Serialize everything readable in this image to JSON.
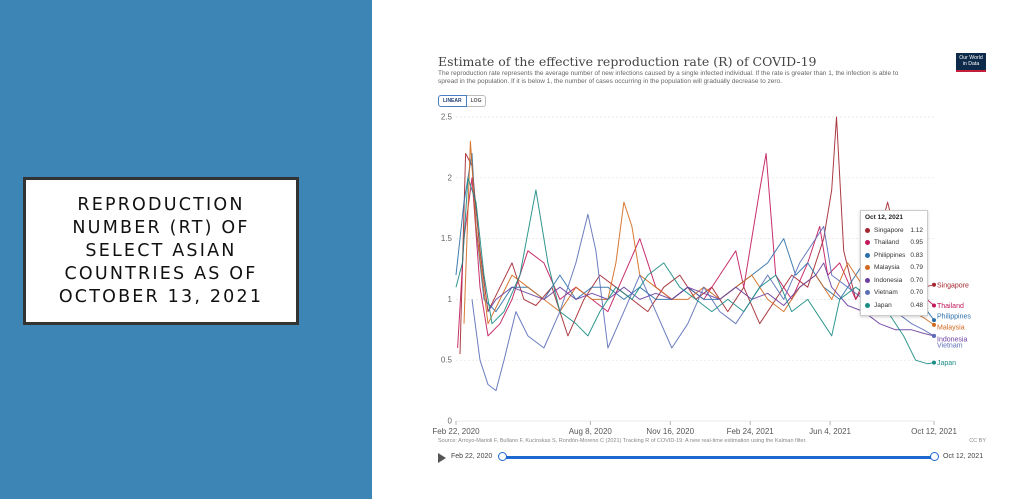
{
  "slide": {
    "title": "REPRODUCTION NUMBER (RT) OF SELECT ASIAN COUNTRIES AS OF OCTOBER 13, 2021",
    "background_color": "#3c85b5"
  },
  "chart_header": {
    "title": "Estimate of the effective reproduction rate (R) of COVID-19",
    "subtitle": "The reproduction rate represents the average number of new infections caused by a single infected individual. If the rate is greater than 1, the infection is able to spread in the population. If it is below 1, the number of cases occurring in the population will gradually decrease to zero.",
    "logo_line1": "Our World",
    "logo_line2": "in Data",
    "scale_linear": "LINEAR",
    "scale_log": "LOG"
  },
  "footer": {
    "source": "Source: Arroyo-Marioli F, Bullano F, Kucinskas S, Rondón-Moreno C (2021) Tracking R of COVID-19: A new real-time estimation using the Kalman filter.",
    "license": "CC BY",
    "timeline_start": "Feb 22, 2020",
    "timeline_end": "Oct 12, 2021"
  },
  "tooltip": {
    "date": "Oct 12, 2021"
  },
  "chart_data": {
    "type": "line",
    "x_ticks": [
      "Feb 22, 2020",
      "Aug 8, 2020",
      "Nov 16, 2020",
      "Feb 24, 2021",
      "Jun 4, 2021",
      "Oct 12, 2021"
    ],
    "x_tick_days": [
      0,
      168,
      268,
      368,
      468,
      598
    ],
    "y_ticks": [
      0,
      0.5,
      1,
      1.5,
      2,
      2.5
    ],
    "ylim": [
      0,
      2.5
    ],
    "grid": true,
    "series": [
      {
        "name": "Singapore",
        "color": "#a2262f",
        "last_value": 1.12,
        "points": [
          [
            5,
            0.55
          ],
          [
            12,
            2.2
          ],
          [
            20,
            2.1
          ],
          [
            30,
            1.4
          ],
          [
            40,
            0.9
          ],
          [
            55,
            1.1
          ],
          [
            70,
            1.3
          ],
          [
            85,
            1.0
          ],
          [
            100,
            0.95
          ],
          [
            120,
            1.1
          ],
          [
            140,
            0.7
          ],
          [
            160,
            1.0
          ],
          [
            180,
            1.2
          ],
          [
            200,
            1.1
          ],
          [
            220,
            1.0
          ],
          [
            240,
            0.9
          ],
          [
            260,
            1.1
          ],
          [
            280,
            1.2
          ],
          [
            300,
            1.0
          ],
          [
            320,
            1.1
          ],
          [
            340,
            0.9
          ],
          [
            360,
            1.1
          ],
          [
            380,
            0.8
          ],
          [
            400,
            1.0
          ],
          [
            420,
            1.2
          ],
          [
            440,
            1.1
          ],
          [
            460,
            1.5
          ],
          [
            470,
            1.9
          ],
          [
            476,
            2.5
          ],
          [
            485,
            1.4
          ],
          [
            500,
            1.0
          ],
          [
            520,
            1.3
          ],
          [
            540,
            1.8
          ],
          [
            555,
            1.4
          ],
          [
            570,
            1.2
          ],
          [
            585,
            1.1
          ],
          [
            598,
            1.12
          ]
        ]
      },
      {
        "name": "Thailand",
        "color": "#c2185b",
        "last_value": 0.95,
        "points": [
          [
            2,
            0.6
          ],
          [
            10,
            1.5
          ],
          [
            20,
            2.0
          ],
          [
            30,
            1.1
          ],
          [
            40,
            0.7
          ],
          [
            55,
            0.8
          ],
          [
            70,
            1.0
          ],
          [
            90,
            1.4
          ],
          [
            110,
            1.3
          ],
          [
            130,
            1.0
          ],
          [
            150,
            1.1
          ],
          [
            170,
            1.0
          ],
          [
            190,
            0.9
          ],
          [
            210,
            1.2
          ],
          [
            230,
            1.5
          ],
          [
            250,
            1.1
          ],
          [
            270,
            1.0
          ],
          [
            290,
            1.1
          ],
          [
            310,
            1.0
          ],
          [
            330,
            1.2
          ],
          [
            350,
            1.4
          ],
          [
            360,
            1.1
          ],
          [
            380,
            1.9
          ],
          [
            388,
            2.2
          ],
          [
            400,
            1.2
          ],
          [
            420,
            1.0
          ],
          [
            440,
            1.3
          ],
          [
            455,
            1.6
          ],
          [
            465,
            1.2
          ],
          [
            480,
            1.3
          ],
          [
            500,
            1.0
          ],
          [
            520,
            1.2
          ],
          [
            540,
            1.6
          ],
          [
            560,
            1.1
          ],
          [
            580,
            1.05
          ],
          [
            598,
            0.95
          ]
        ]
      },
      {
        "name": "Philippines",
        "color": "#2b6fa8",
        "last_value": 0.83,
        "points": [
          [
            0,
            1.2
          ],
          [
            10,
            1.8
          ],
          [
            20,
            2.2
          ],
          [
            25,
            1.6
          ],
          [
            35,
            1.0
          ],
          [
            50,
            0.9
          ],
          [
            70,
            1.1
          ],
          [
            90,
            1.1
          ],
          [
            110,
            1.0
          ],
          [
            130,
            1.2
          ],
          [
            150,
            1.0
          ],
          [
            170,
            1.1
          ],
          [
            190,
            1.1
          ],
          [
            210,
            1.0
          ],
          [
            230,
            1.1
          ],
          [
            250,
            1.0
          ],
          [
            270,
            1.0
          ],
          [
            290,
            1.1
          ],
          [
            310,
            1.0
          ],
          [
            330,
            1.0
          ],
          [
            350,
            1.1
          ],
          [
            370,
            1.2
          ],
          [
            390,
            1.3
          ],
          [
            410,
            1.5
          ],
          [
            425,
            1.2
          ],
          [
            440,
            1.3
          ],
          [
            460,
            1.1
          ],
          [
            480,
            1.0
          ],
          [
            500,
            1.2
          ],
          [
            520,
            1.4
          ],
          [
            540,
            1.3
          ],
          [
            560,
            1.1
          ],
          [
            575,
            0.95
          ],
          [
            590,
            0.9
          ],
          [
            598,
            0.83
          ]
        ]
      },
      {
        "name": "Malaysia",
        "color": "#d2691e",
        "last_value": 0.79,
        "points": [
          [
            10,
            0.8
          ],
          [
            18,
            2.3
          ],
          [
            25,
            1.6
          ],
          [
            40,
            0.8
          ],
          [
            55,
            1.0
          ],
          [
            70,
            1.2
          ],
          [
            90,
            1.1
          ],
          [
            110,
            1.0
          ],
          [
            130,
            0.9
          ],
          [
            150,
            1.1
          ],
          [
            170,
            1.0
          ],
          [
            190,
            1.0
          ],
          [
            200,
            1.3
          ],
          [
            210,
            1.8
          ],
          [
            220,
            1.6
          ],
          [
            230,
            1.2
          ],
          [
            250,
            1.1
          ],
          [
            270,
            1.0
          ],
          [
            290,
            1.0
          ],
          [
            310,
            1.1
          ],
          [
            330,
            1.0
          ],
          [
            350,
            1.1
          ],
          [
            370,
            1.2
          ],
          [
            390,
            1.0
          ],
          [
            410,
            0.9
          ],
          [
            430,
            1.1
          ],
          [
            450,
            1.2
          ],
          [
            470,
            1.0
          ],
          [
            490,
            1.3
          ],
          [
            510,
            1.1
          ],
          [
            530,
            1.0
          ],
          [
            550,
            0.95
          ],
          [
            570,
            0.9
          ],
          [
            585,
            0.85
          ],
          [
            598,
            0.79
          ]
        ]
      },
      {
        "name": "Indonesia",
        "color": "#6b3fa0",
        "last_value": 0.7,
        "points": [
          [
            40,
            0.9
          ],
          [
            50,
            1.0
          ],
          [
            70,
            1.1
          ],
          [
            90,
            1.05
          ],
          [
            110,
            1.0
          ],
          [
            130,
            1.1
          ],
          [
            150,
            1.0
          ],
          [
            170,
            1.05
          ],
          [
            190,
            1.0
          ],
          [
            210,
            1.1
          ],
          [
            230,
            1.0
          ],
          [
            250,
            1.05
          ],
          [
            270,
            1.0
          ],
          [
            290,
            1.1
          ],
          [
            310,
            1.05
          ],
          [
            330,
            1.0
          ],
          [
            350,
            1.1
          ],
          [
            370,
            1.0
          ],
          [
            390,
            1.05
          ],
          [
            410,
            0.95
          ],
          [
            430,
            1.1
          ],
          [
            450,
            1.2
          ],
          [
            460,
            1.3
          ],
          [
            470,
            1.1
          ],
          [
            490,
            0.95
          ],
          [
            510,
            0.9
          ],
          [
            530,
            0.8
          ],
          [
            550,
            0.75
          ],
          [
            570,
            0.75
          ],
          [
            585,
            0.72
          ],
          [
            598,
            0.7
          ]
        ]
      },
      {
        "name": "Vietnam",
        "color": "#5a6fb8",
        "last_value": 0.7,
        "points": [
          [
            20,
            1.0
          ],
          [
            30,
            0.5
          ],
          [
            40,
            0.3
          ],
          [
            50,
            0.25
          ],
          [
            60,
            0.5
          ],
          [
            75,
            0.9
          ],
          [
            90,
            0.7
          ],
          [
            110,
            0.6
          ],
          [
            130,
            0.9
          ],
          [
            150,
            1.3
          ],
          [
            165,
            1.7
          ],
          [
            175,
            1.4
          ],
          [
            190,
            0.6
          ],
          [
            210,
            0.9
          ],
          [
            230,
            1.2
          ],
          [
            250,
            0.9
          ],
          [
            270,
            0.6
          ],
          [
            290,
            0.8
          ],
          [
            310,
            1.1
          ],
          [
            330,
            0.9
          ],
          [
            350,
            0.8
          ],
          [
            370,
            1.0
          ],
          [
            390,
            1.2
          ],
          [
            410,
            1.0
          ],
          [
            430,
            1.3
          ],
          [
            450,
            1.5
          ],
          [
            460,
            1.6
          ],
          [
            470,
            1.2
          ],
          [
            490,
            1.1
          ],
          [
            510,
            1.0
          ],
          [
            530,
            0.95
          ],
          [
            550,
            0.9
          ],
          [
            570,
            0.8
          ],
          [
            585,
            0.75
          ],
          [
            598,
            0.7
          ]
        ]
      },
      {
        "name": "Japan",
        "color": "#1a8c84",
        "last_value": 0.48,
        "points": [
          [
            0,
            1.1
          ],
          [
            8,
            1.3
          ],
          [
            15,
            2.0
          ],
          [
            25,
            1.8
          ],
          [
            35,
            1.2
          ],
          [
            45,
            0.8
          ],
          [
            60,
            0.9
          ],
          [
            80,
            1.2
          ],
          [
            100,
            1.9
          ],
          [
            115,
            1.3
          ],
          [
            130,
            0.9
          ],
          [
            150,
            0.8
          ],
          [
            165,
            0.7
          ],
          [
            180,
            0.9
          ],
          [
            200,
            1.1
          ],
          [
            220,
            1.0
          ],
          [
            240,
            1.2
          ],
          [
            260,
            1.3
          ],
          [
            280,
            1.1
          ],
          [
            300,
            1.0
          ],
          [
            320,
            0.9
          ],
          [
            340,
            1.0
          ],
          [
            360,
            0.9
          ],
          [
            380,
            1.1
          ],
          [
            400,
            1.2
          ],
          [
            420,
            0.9
          ],
          [
            440,
            1.0
          ],
          [
            460,
            0.8
          ],
          [
            470,
            0.7
          ],
          [
            480,
            1.0
          ],
          [
            500,
            1.1
          ],
          [
            520,
            1.0
          ],
          [
            540,
            0.9
          ],
          [
            560,
            0.7
          ],
          [
            575,
            0.5
          ],
          [
            590,
            0.47
          ],
          [
            598,
            0.48
          ]
        ]
      }
    ]
  }
}
